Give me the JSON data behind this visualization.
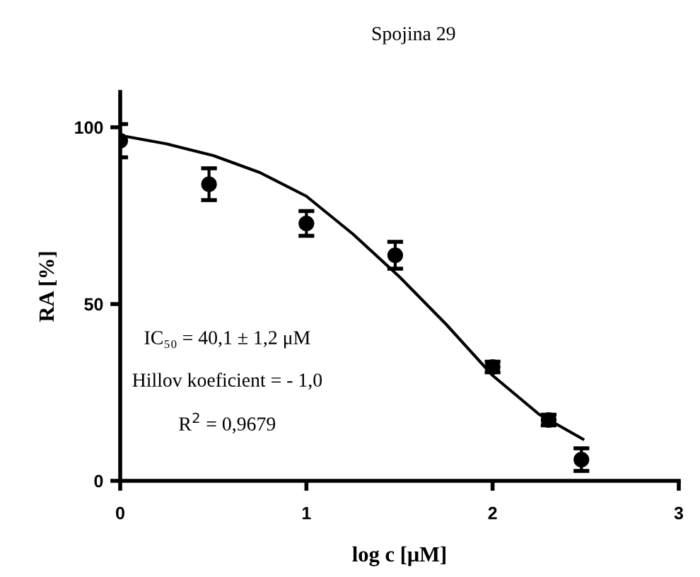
{
  "chart_data": {
    "type": "scatter",
    "title": "Spojina 29",
    "xlabel": "log c [μM]",
    "ylabel": "RA [%]",
    "xlim": [
      0,
      3
    ],
    "xticks": [
      0,
      1,
      2,
      3
    ],
    "ylim": [
      0,
      110
    ],
    "yticks": [
      0,
      50,
      100
    ],
    "grid": false,
    "legend": false,
    "annotations": [
      "IC₅₀ = 40,1 ± 1,2 μM",
      "Hillov koeficient = - 1,0",
      "R$^{2}$ = 0,9679"
    ],
    "series": [
      {
        "color": "#000000",
        "marker": "circle",
        "x": [
          0,
          0.477,
          1,
          1.477,
          2,
          2.301,
          2.477
        ],
        "values": [
          96.2,
          83.9,
          72.8,
          63.8,
          32.2,
          17.2,
          6.0
        ],
        "errors": [
          4.7,
          4.5,
          3.5,
          3.8,
          1.5,
          1.5,
          3.2
        ]
      },
      {
        "type": "line",
        "color": "#000000",
        "marker": "none",
        "line_style": "solid",
        "x": [
          0,
          0.25,
          0.5,
          0.75,
          1,
          1.25,
          1.5,
          1.75,
          2,
          2.25,
          2.485
        ],
        "values": [
          97.7,
          95.3,
          92,
          87.2,
          80.5,
          69.8,
          57.7,
          44.3,
          29.8,
          18.8,
          11.8
        ]
      }
    ]
  }
}
